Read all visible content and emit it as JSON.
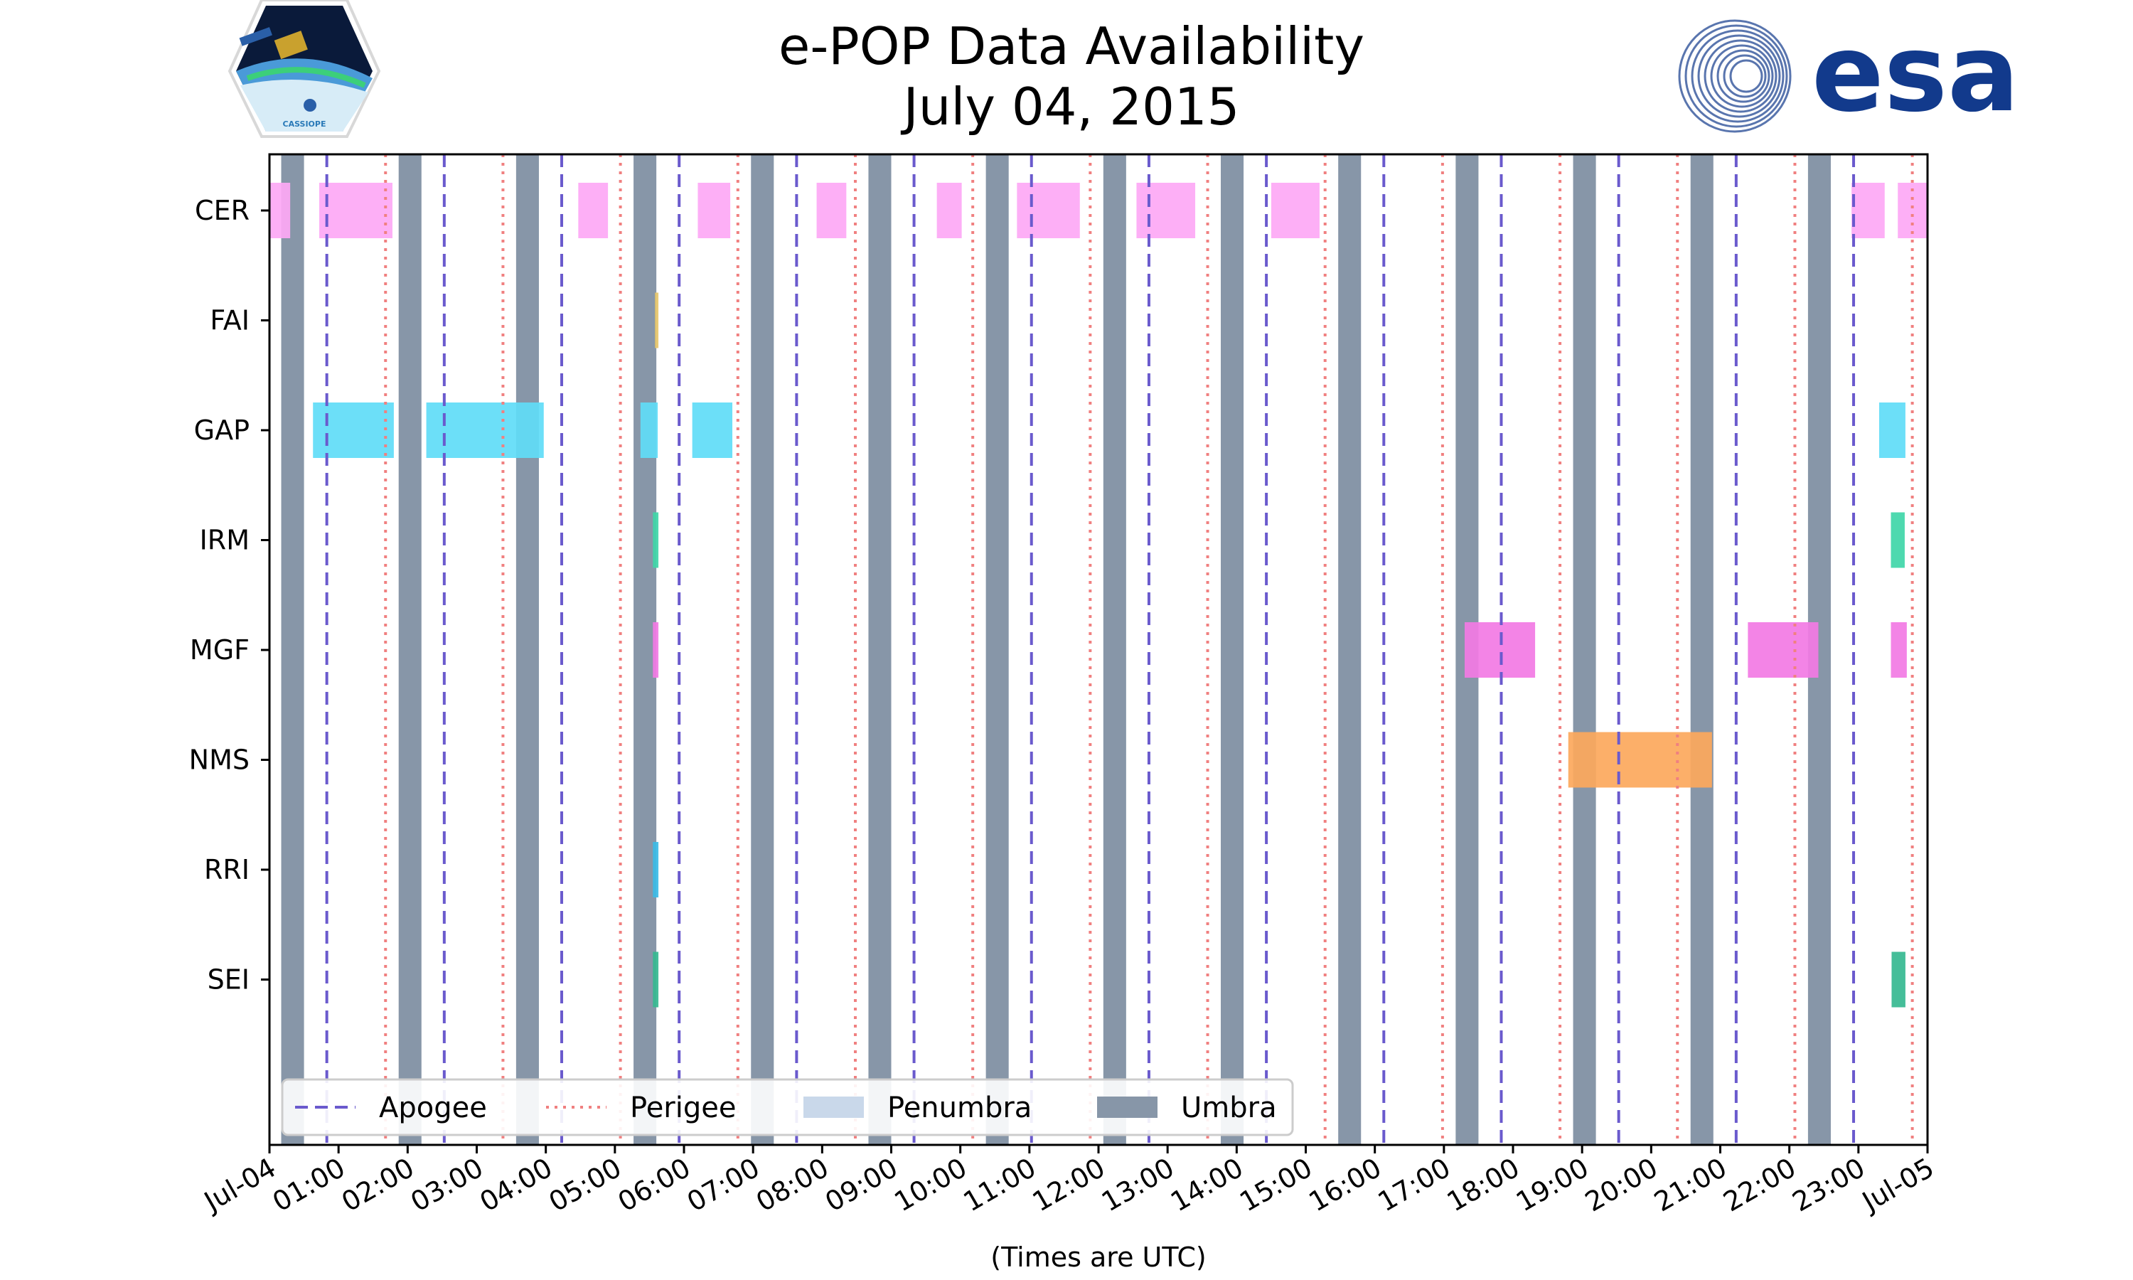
{
  "colors": {
    "apogee": "#6a5acd",
    "perigee": "#f08080",
    "penumbra": "#c9d8ea",
    "umbra": "#8796a8",
    "CER": "#fda8f5",
    "FAI": "#e6c56a",
    "GAP": "#5fdcf7",
    "IRM": "#3fd6a8",
    "MGF": "#f27ae4",
    "NMS": "#fca85c",
    "RRI": "#3bbbe6",
    "SEI": "#35b890",
    "esa_blue": "#123a8c"
  },
  "logos": {
    "cassiope_text": "CASSIOPE",
    "esa_text": "esa"
  },
  "chart_data": {
    "type": "timeline",
    "title": "e-POP Data Availability",
    "subtitle": "July 04, 2015",
    "xlabel": "(Times are UTC)",
    "xlim": [
      0,
      24
    ],
    "x_ticks": [
      {
        "t": 0,
        "label": "Jul-04"
      },
      {
        "t": 1,
        "label": "01:00"
      },
      {
        "t": 2,
        "label": "02:00"
      },
      {
        "t": 3,
        "label": "03:00"
      },
      {
        "t": 4,
        "label": "04:00"
      },
      {
        "t": 5,
        "label": "05:00"
      },
      {
        "t": 6,
        "label": "06:00"
      },
      {
        "t": 7,
        "label": "07:00"
      },
      {
        "t": 8,
        "label": "08:00"
      },
      {
        "t": 9,
        "label": "09:00"
      },
      {
        "t": 10,
        "label": "10:00"
      },
      {
        "t": 11,
        "label": "11:00"
      },
      {
        "t": 12,
        "label": "12:00"
      },
      {
        "t": 13,
        "label": "13:00"
      },
      {
        "t": 14,
        "label": "14:00"
      },
      {
        "t": 15,
        "label": "15:00"
      },
      {
        "t": 16,
        "label": "16:00"
      },
      {
        "t": 17,
        "label": "17:00"
      },
      {
        "t": 18,
        "label": "18:00"
      },
      {
        "t": 19,
        "label": "19:00"
      },
      {
        "t": 20,
        "label": "20:00"
      },
      {
        "t": 21,
        "label": "21:00"
      },
      {
        "t": 22,
        "label": "22:00"
      },
      {
        "t": 23,
        "label": "23:00"
      },
      {
        "t": 24,
        "label": "Jul-05"
      }
    ],
    "instruments": [
      "CER",
      "FAI",
      "GAP",
      "IRM",
      "MGF",
      "NMS",
      "RRI",
      "SEI"
    ],
    "umbra": [
      [
        0.17,
        0.5
      ],
      [
        1.87,
        2.2
      ],
      [
        3.57,
        3.9
      ],
      [
        5.27,
        5.6
      ],
      [
        6.97,
        7.3
      ],
      [
        8.67,
        9.0
      ],
      [
        10.37,
        10.7
      ],
      [
        12.07,
        12.4
      ],
      [
        13.77,
        14.1
      ],
      [
        15.47,
        15.8
      ],
      [
        17.17,
        17.5
      ],
      [
        18.87,
        19.2
      ],
      [
        20.57,
        20.9
      ],
      [
        22.27,
        22.6
      ]
    ],
    "apogee": [
      0.83,
      2.53,
      4.23,
      5.93,
      7.63,
      9.33,
      11.03,
      12.73,
      14.43,
      16.13,
      17.83,
      19.53,
      21.23,
      22.93
    ],
    "perigee": [
      1.68,
      3.38,
      5.08,
      6.78,
      8.48,
      10.18,
      11.88,
      13.58,
      15.28,
      16.98,
      18.68,
      20.38,
      22.08,
      23.78
    ],
    "availability": {
      "CER": [
        [
          0.0,
          0.3
        ],
        [
          0.72,
          1.78
        ],
        [
          4.47,
          4.9
        ],
        [
          6.2,
          6.67
        ],
        [
          7.92,
          8.35
        ],
        [
          9.66,
          10.02
        ],
        [
          10.82,
          11.73
        ],
        [
          12.55,
          13.4
        ],
        [
          14.5,
          15.2
        ],
        [
          22.9,
          23.38
        ],
        [
          23.57,
          24.0
        ]
      ],
      "FAI": [
        [
          5.58,
          5.63
        ]
      ],
      "GAP": [
        [
          0.63,
          1.8
        ],
        [
          2.27,
          3.97
        ],
        [
          5.37,
          5.62
        ],
        [
          6.12,
          6.7
        ],
        [
          23.3,
          23.68
        ]
      ],
      "IRM": [
        [
          5.55,
          5.63
        ],
        [
          23.47,
          23.67
        ]
      ],
      "MGF": [
        [
          5.55,
          5.63
        ],
        [
          17.3,
          18.32
        ],
        [
          21.4,
          22.42
        ],
        [
          23.47,
          23.7
        ]
      ],
      "NMS": [
        [
          18.8,
          20.88
        ]
      ],
      "RRI": [
        [
          5.55,
          5.63
        ]
      ],
      "SEI": [
        [
          5.55,
          5.63
        ],
        [
          23.48,
          23.68
        ]
      ]
    },
    "legend": {
      "position": "bottom-left",
      "items": [
        {
          "label": "Apogee",
          "style": "dashed"
        },
        {
          "label": "Perigee",
          "style": "dotted"
        },
        {
          "label": "Penumbra",
          "style": "patch"
        },
        {
          "label": "Umbra",
          "style": "patch"
        }
      ]
    }
  }
}
